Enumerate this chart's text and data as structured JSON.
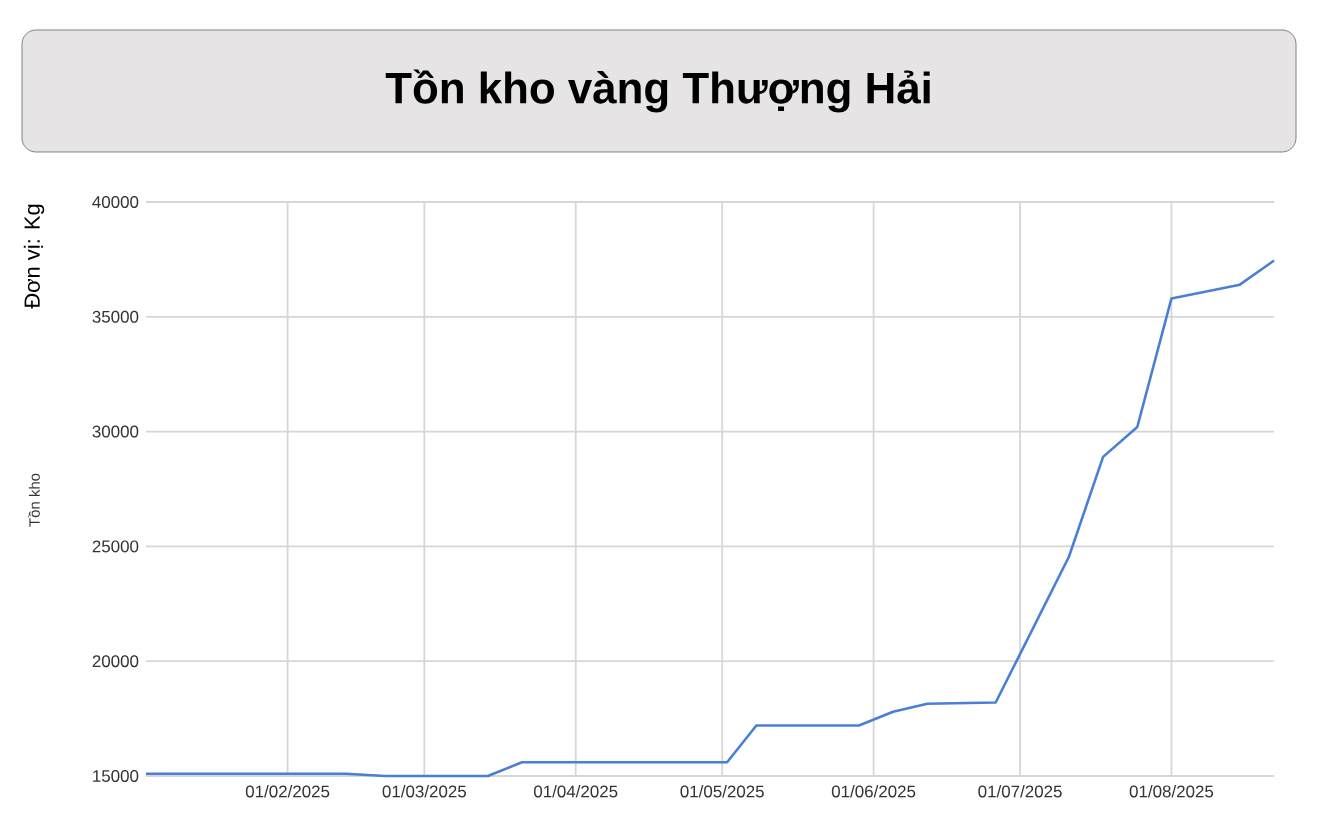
{
  "chart_data": {
    "type": "line",
    "title": "Tồn kho vàng Thượng Hải",
    "ylabel": "Tồn kho",
    "annotations": [
      "Đơn vị: Kg"
    ],
    "x": [
      "2025-01-03",
      "2025-02-13",
      "2025-02-21",
      "2025-03-14",
      "2025-03-21",
      "2025-05-02",
      "2025-05-08",
      "2025-05-29",
      "2025-06-05",
      "2025-06-12",
      "2025-06-26",
      "2025-07-11",
      "2025-07-18",
      "2025-07-25",
      "2025-08-01",
      "2025-08-15",
      "2025-08-22"
    ],
    "values": [
      15100,
      15100,
      15000,
      15000,
      15600,
      15600,
      17200,
      17200,
      17800,
      18150,
      18200,
      24550,
      28900,
      30200,
      35800,
      36400,
      37450
    ],
    "color": "#4a7fd6",
    "xlim": [
      "2025-01-03",
      "2025-08-22"
    ],
    "xticks": [
      {
        "value": "2025-02-01",
        "label": "01/02/2025"
      },
      {
        "value": "2025-03-01",
        "label": "01/03/2025"
      },
      {
        "value": "2025-04-01",
        "label": "01/04/2025"
      },
      {
        "value": "2025-05-01",
        "label": "01/05/2025"
      },
      {
        "value": "2025-06-01",
        "label": "01/06/2025"
      },
      {
        "value": "2025-07-01",
        "label": "01/07/2025"
      },
      {
        "value": "2025-08-01",
        "label": "01/08/2025"
      }
    ],
    "ylim": [
      15000,
      40000
    ],
    "yticks": [
      15000,
      20000,
      25000,
      30000,
      35000,
      40000
    ],
    "grid": true,
    "line_style": "solid"
  }
}
